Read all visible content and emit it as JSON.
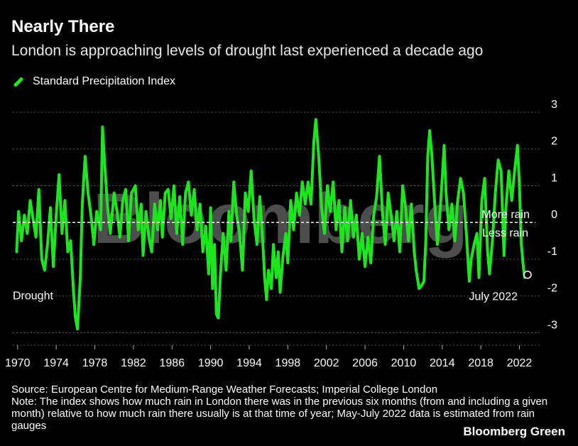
{
  "header": {
    "title": "Nearly There",
    "subtitle": "London is approaching levels of drought last experienced a decade ago"
  },
  "legend": {
    "label": "Standard Precipitation Index",
    "color": "#1ee61e"
  },
  "annotations": {
    "more_rain": "More rain",
    "less_rain": "Less rain",
    "drought": "Drought",
    "latest": "July 2022"
  },
  "footer": {
    "source": "Source: European Centre for Medium-Range Weather Forecasts; Imperial College London",
    "note": "Note: The index shows how much rain in London there was in the previous six months (from and including a given month) relative to how much rain there usually is at that time of year; May-July 2022 data is estimated from rain gauges",
    "brand": "Bloomberg Green",
    "watermark": "Bloomberg"
  },
  "chart_data": {
    "type": "line",
    "title": "Nearly There",
    "subtitle": "London is approaching levels of drought last experienced a decade ago",
    "series_name": "Standard Precipitation Index",
    "x_range": [
      1969.5,
      2023.8
    ],
    "ylim": [
      -3.3,
      3.0
    ],
    "y_ticks": [
      3,
      2,
      1,
      0,
      -1,
      -2,
      -3
    ],
    "x_ticks": [
      1970,
      1974,
      1978,
      1982,
      1986,
      1990,
      1994,
      1998,
      2002,
      2006,
      2010,
      2014,
      2018,
      2022
    ],
    "drought_level": -2,
    "grid": true,
    "zero_line_dashed": true,
    "points": [
      [
        1969.9,
        -0.8
      ],
      [
        1970.1,
        0.3
      ],
      [
        1970.4,
        -0.5
      ],
      [
        1970.7,
        0.2
      ],
      [
        1971.0,
        -0.3
      ],
      [
        1971.3,
        0.6
      ],
      [
        1971.6,
        0.1
      ],
      [
        1971.9,
        -0.4
      ],
      [
        1972.2,
        0.9
      ],
      [
        1972.5,
        -1.0
      ],
      [
        1972.8,
        -1.3
      ],
      [
        1973.1,
        -0.6
      ],
      [
        1973.4,
        0.4
      ],
      [
        1973.7,
        -1.2
      ],
      [
        1974.0,
        0.2
      ],
      [
        1974.3,
        1.3
      ],
      [
        1974.6,
        -0.3
      ],
      [
        1974.9,
        0.6
      ],
      [
        1975.2,
        -0.8
      ],
      [
        1975.5,
        -0.5
      ],
      [
        1975.8,
        -1.9
      ],
      [
        1976.0,
        -2.6
      ],
      [
        1976.2,
        -2.9
      ],
      [
        1976.5,
        -1.5
      ],
      [
        1976.7,
        0.5
      ],
      [
        1977.0,
        1.8
      ],
      [
        1977.3,
        0.8
      ],
      [
        1977.6,
        0.2
      ],
      [
        1977.9,
        -0.6
      ],
      [
        1978.2,
        0.3
      ],
      [
        1978.6,
        -0.2
      ],
      [
        1978.8,
        2.6
      ],
      [
        1979.0,
        1.7
      ],
      [
        1979.3,
        0.5
      ],
      [
        1979.6,
        -0.3
      ],
      [
        1980.0,
        0.8
      ],
      [
        1980.3,
        0.3
      ],
      [
        1980.6,
        -0.4
      ],
      [
        1980.9,
        0.6
      ],
      [
        1981.2,
        0.9
      ],
      [
        1981.5,
        -0.5
      ],
      [
        1981.8,
        0.8
      ],
      [
        1982.2,
        1.0
      ],
      [
        1982.5,
        -0.2
      ],
      [
        1982.8,
        0.5
      ],
      [
        1983.0,
        -0.9
      ],
      [
        1983.3,
        0.3
      ],
      [
        1983.6,
        -0.4
      ],
      [
        1983.9,
        -0.8
      ],
      [
        1984.2,
        0.5
      ],
      [
        1984.5,
        -0.2
      ],
      [
        1984.8,
        0.6
      ],
      [
        1985.0,
        -0.4
      ],
      [
        1985.3,
        0.8
      ],
      [
        1985.6,
        0.9
      ],
      [
        1985.9,
        0.1
      ],
      [
        1986.2,
        1.0
      ],
      [
        1986.5,
        -0.3
      ],
      [
        1986.8,
        0.7
      ],
      [
        1987.1,
        -0.6
      ],
      [
        1987.4,
        0.8
      ],
      [
        1987.7,
        1.1
      ],
      [
        1988.0,
        0.2
      ],
      [
        1988.3,
        0.9
      ],
      [
        1988.6,
        -0.2
      ],
      [
        1988.9,
        0.5
      ],
      [
        1989.2,
        -0.8
      ],
      [
        1989.5,
        -0.1
      ],
      [
        1989.8,
        -1.4
      ],
      [
        1990.0,
        0.4
      ],
      [
        1990.2,
        -1.8
      ],
      [
        1990.4,
        -0.6
      ],
      [
        1990.6,
        -2.5
      ],
      [
        1990.8,
        -2.6
      ],
      [
        1991.0,
        -1.5
      ],
      [
        1991.3,
        -0.3
      ],
      [
        1991.6,
        -1.3
      ],
      [
        1991.9,
        0.3
      ],
      [
        1992.1,
        -0.5
      ],
      [
        1992.4,
        1.1
      ],
      [
        1992.7,
        0.2
      ],
      [
        1993.0,
        -0.3
      ],
      [
        1993.3,
        -1.3
      ],
      [
        1993.6,
        0.8
      ],
      [
        1993.9,
        0.3
      ],
      [
        1994.2,
        1.4
      ],
      [
        1994.5,
        0.1
      ],
      [
        1994.8,
        -0.6
      ],
      [
        1995.1,
        0.7
      ],
      [
        1995.4,
        -0.5
      ],
      [
        1995.6,
        -1.5
      ],
      [
        1995.8,
        -2.1
      ],
      [
        1996.0,
        -1.3
      ],
      [
        1996.3,
        -1.8
      ],
      [
        1996.5,
        -0.6
      ],
      [
        1996.8,
        -1.5
      ],
      [
        1997.0,
        -0.8
      ],
      [
        1997.2,
        -1.9
      ],
      [
        1997.5,
        -0.9
      ],
      [
        1997.8,
        -0.3
      ],
      [
        1998.0,
        -1.1
      ],
      [
        1998.3,
        0.6
      ],
      [
        1998.6,
        -0.2
      ],
      [
        1998.9,
        0.8
      ],
      [
        1999.2,
        0.2
      ],
      [
        1999.5,
        1.1
      ],
      [
        1999.8,
        0.5
      ],
      [
        2000.1,
        1.1
      ],
      [
        2000.4,
        0.5
      ],
      [
        2000.7,
        2.2
      ],
      [
        2000.9,
        2.8
      ],
      [
        2001.2,
        1.8
      ],
      [
        2001.5,
        0.4
      ],
      [
        2001.8,
        -0.3
      ],
      [
        2002.1,
        1.0
      ],
      [
        2002.4,
        0.3
      ],
      [
        2002.7,
        1.1
      ],
      [
        2003.0,
        -0.2
      ],
      [
        2003.3,
        0.6
      ],
      [
        2003.6,
        -0.8
      ],
      [
        2003.9,
        0.4
      ],
      [
        2004.2,
        -0.5
      ],
      [
        2004.5,
        0.6
      ],
      [
        2004.8,
        -0.4
      ],
      [
        2005.1,
        0.2
      ],
      [
        2005.4,
        -1.0
      ],
      [
        2005.7,
        -0.3
      ],
      [
        2006.0,
        -1.2
      ],
      [
        2006.3,
        -0.4
      ],
      [
        2006.6,
        -1.1
      ],
      [
        2006.9,
        0.2
      ],
      [
        2007.2,
        0.7
      ],
      [
        2007.5,
        1.8
      ],
      [
        2007.8,
        0.3
      ],
      [
        2008.1,
        -0.6
      ],
      [
        2008.4,
        0.8
      ],
      [
        2008.7,
        0.2
      ],
      [
        2009.0,
        -0.5
      ],
      [
        2009.3,
        0.3
      ],
      [
        2009.6,
        -0.8
      ],
      [
        2009.9,
        1.0
      ],
      [
        2010.2,
        0.4
      ],
      [
        2010.5,
        -0.5
      ],
      [
        2010.8,
        0.5
      ],
      [
        2011.1,
        -0.8
      ],
      [
        2011.3,
        -1.3
      ],
      [
        2011.6,
        -1.8
      ],
      [
        2011.9,
        -1.7
      ],
      [
        2012.1,
        -1.6
      ],
      [
        2012.3,
        -0.5
      ],
      [
        2012.5,
        1.8
      ],
      [
        2012.7,
        2.5
      ],
      [
        2012.9,
        1.9
      ],
      [
        2013.2,
        0.6
      ],
      [
        2013.5,
        -0.6
      ],
      [
        2013.8,
        0.4
      ],
      [
        2014.0,
        1.2
      ],
      [
        2014.2,
        2.1
      ],
      [
        2014.4,
        0.8
      ],
      [
        2014.7,
        -0.2
      ],
      [
        2015.0,
        0.5
      ],
      [
        2015.3,
        -0.5
      ],
      [
        2015.6,
        0.6
      ],
      [
        2015.9,
        1.2
      ],
      [
        2016.2,
        0.8
      ],
      [
        2016.5,
        -0.3
      ],
      [
        2016.8,
        -1.6
      ],
      [
        2017.0,
        -1.0
      ],
      [
        2017.3,
        -0.6
      ],
      [
        2017.6,
        -0.3
      ],
      [
        2017.8,
        -1.5
      ],
      [
        2018.1,
        0.6
      ],
      [
        2018.4,
        1.2
      ],
      [
        2018.7,
        -0.8
      ],
      [
        2018.9,
        -1.4
      ],
      [
        2019.2,
        -0.5
      ],
      [
        2019.5,
        0.8
      ],
      [
        2019.8,
        1.7
      ],
      [
        2020.1,
        1.4
      ],
      [
        2020.4,
        -0.9
      ],
      [
        2020.6,
        0.4
      ],
      [
        2020.9,
        1.4
      ],
      [
        2021.2,
        0.6
      ],
      [
        2021.5,
        1.4
      ],
      [
        2021.8,
        2.1
      ],
      [
        2022.0,
        1.0
      ],
      [
        2022.2,
        -0.6
      ],
      [
        2022.4,
        -1.2
      ],
      [
        2022.55,
        -1.5
      ]
    ]
  }
}
